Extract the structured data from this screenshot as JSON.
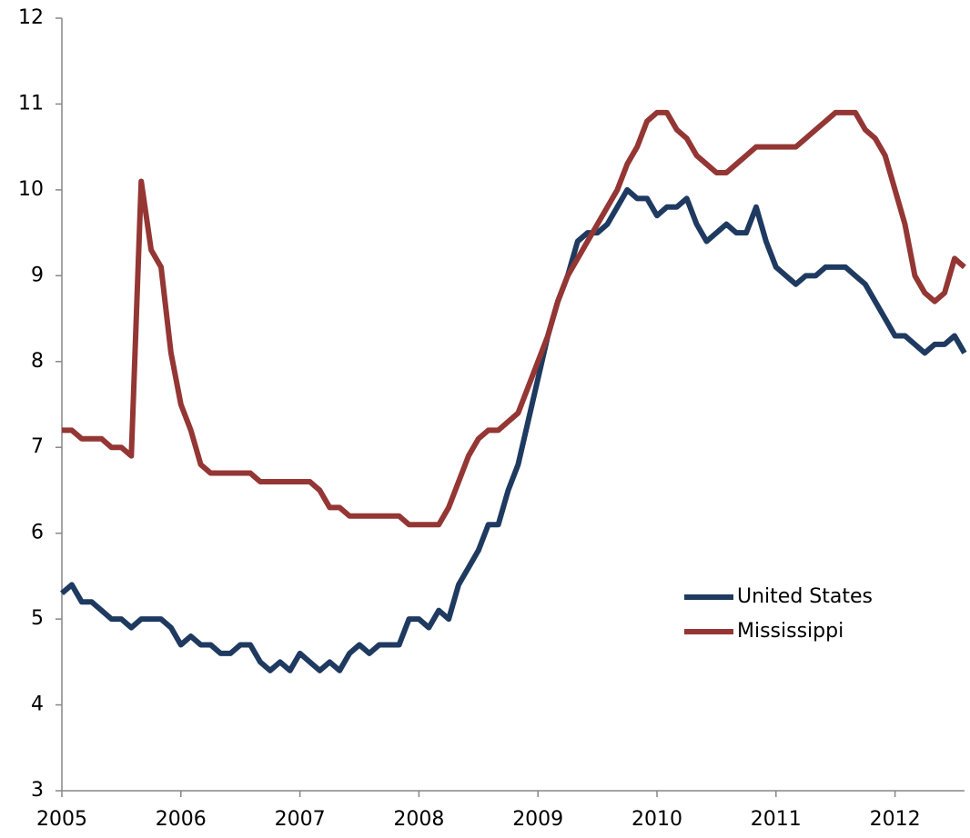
{
  "chart_data": {
    "type": "line",
    "categories": [
      "2005",
      null,
      null,
      null,
      null,
      null,
      null,
      null,
      null,
      null,
      null,
      null,
      "2006",
      null,
      null,
      null,
      null,
      null,
      null,
      null,
      null,
      null,
      null,
      null,
      "2007",
      null,
      null,
      null,
      null,
      null,
      null,
      null,
      null,
      null,
      null,
      null,
      "2008",
      null,
      null,
      null,
      null,
      null,
      null,
      null,
      null,
      null,
      null,
      null,
      "2009",
      null,
      null,
      null,
      null,
      null,
      null,
      null,
      null,
      null,
      null,
      null,
      "2010",
      null,
      null,
      null,
      null,
      null,
      null,
      null,
      null,
      null,
      null,
      null,
      "2011",
      null,
      null,
      null,
      null,
      null,
      null,
      null,
      null,
      null,
      null,
      null,
      "2012",
      null,
      null,
      null,
      null,
      null,
      null,
      null
    ],
    "series": [
      {
        "name": "United States",
        "color": "#1f3a60",
        "values": [
          5.3,
          5.4,
          5.2,
          5.2,
          5.1,
          5.0,
          5.0,
          4.9,
          5.0,
          5.0,
          5.0,
          4.9,
          4.7,
          4.8,
          4.7,
          4.7,
          4.6,
          4.6,
          4.7,
          4.7,
          4.5,
          4.4,
          4.5,
          4.4,
          4.6,
          4.5,
          4.4,
          4.5,
          4.4,
          4.6,
          4.7,
          4.6,
          4.7,
          4.7,
          4.7,
          5.0,
          5.0,
          4.9,
          5.1,
          5.0,
          5.4,
          5.6,
          5.8,
          6.1,
          6.1,
          6.5,
          6.8,
          7.3,
          7.8,
          8.3,
          8.7,
          9.0,
          9.4,
          9.5,
          9.5,
          9.6,
          9.8,
          10.0,
          9.9,
          9.9,
          9.7,
          9.8,
          9.8,
          9.9,
          9.6,
          9.4,
          9.5,
          9.6,
          9.5,
          9.5,
          9.8,
          9.4,
          9.1,
          9.0,
          8.9,
          9.0,
          9.0,
          9.1,
          9.1,
          9.1,
          9.0,
          8.9,
          8.7,
          8.5,
          8.3,
          8.3,
          8.2,
          8.1,
          8.2,
          8.2,
          8.3,
          8.1
        ]
      },
      {
        "name": "Mississippi",
        "color": "#943634",
        "values": [
          7.2,
          7.2,
          7.1,
          7.1,
          7.1,
          7.0,
          7.0,
          6.9,
          10.1,
          9.3,
          9.1,
          8.1,
          7.5,
          7.2,
          6.8,
          6.7,
          6.7,
          6.7,
          6.7,
          6.7,
          6.6,
          6.6,
          6.6,
          6.6,
          6.6,
          6.6,
          6.5,
          6.3,
          6.3,
          6.2,
          6.2,
          6.2,
          6.2,
          6.2,
          6.2,
          6.1,
          6.1,
          6.1,
          6.1,
          6.3,
          6.6,
          6.9,
          7.1,
          7.2,
          7.2,
          7.3,
          7.4,
          7.7,
          8.0,
          8.3,
          8.7,
          9.0,
          9.2,
          9.4,
          9.6,
          9.8,
          10.0,
          10.3,
          10.5,
          10.8,
          10.9,
          10.9,
          10.7,
          10.6,
          10.4,
          10.3,
          10.2,
          10.2,
          10.3,
          10.4,
          10.5,
          10.5,
          10.5,
          10.5,
          10.5,
          10.6,
          10.7,
          10.8,
          10.9,
          10.9,
          10.9,
          10.7,
          10.6,
          10.4,
          10.0,
          9.6,
          9.0,
          8.8,
          8.7,
          8.8,
          9.2,
          9.1
        ]
      }
    ],
    "ylim": [
      3,
      12
    ],
    "yticks": [
      3,
      4,
      5,
      6,
      7,
      8,
      9,
      10,
      11,
      12
    ]
  }
}
